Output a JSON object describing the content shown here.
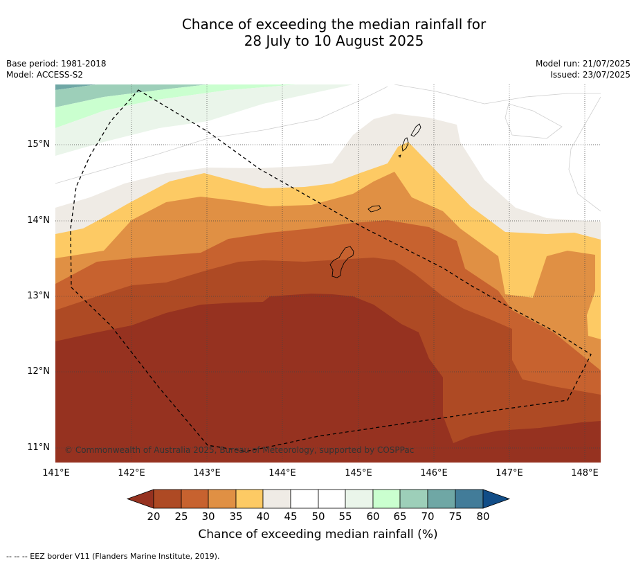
{
  "title_line1": "Chance of exceeding the median rainfall for",
  "title_line2": "28 July to 10 August 2025",
  "base_period": "Base period: 1981-2018",
  "model": "Model: ACCESS-S2",
  "model_run": "Model run: 21/07/2025",
  "issued": "Issued: 23/07/2025",
  "map": {
    "lon_labels": [
      "141°E",
      "142°E",
      "143°E",
      "144°E",
      "145°E",
      "146°E",
      "147°E",
      "148°E"
    ],
    "lat_labels": [
      "15°N",
      "14°N",
      "13°N",
      "12°N",
      "11°N"
    ],
    "lon_range": [
      141.0,
      148.2
    ],
    "lat_range": [
      10.8,
      15.8
    ],
    "copyright": "© Commonwealth of Australia 2025, Bureau of Meteorology, supported by COSPPac",
    "islands": [
      "Guam",
      "Rota",
      "Aguijan",
      "Tinian",
      "Saipan"
    ]
  },
  "colorbar": {
    "title": "Chance of exceeding median rainfall (%)",
    "ticks": [
      "20",
      "25",
      "30",
      "35",
      "40",
      "45",
      "50",
      "55",
      "60",
      "65",
      "70",
      "75",
      "80"
    ],
    "colors": [
      "#963220",
      "#ae4a24",
      "#c7622f",
      "#e09044",
      "#fdca64",
      "#efebe5",
      "#ffffff",
      "#ffffff",
      "#eaf5ea",
      "#caffcf",
      "#9dcfb9",
      "#6fa7a5",
      "#427c99",
      "#114d87"
    ]
  },
  "footnote": "--  --  -- EEZ border V11 (Flanders Marine Institute, 2019)."
}
